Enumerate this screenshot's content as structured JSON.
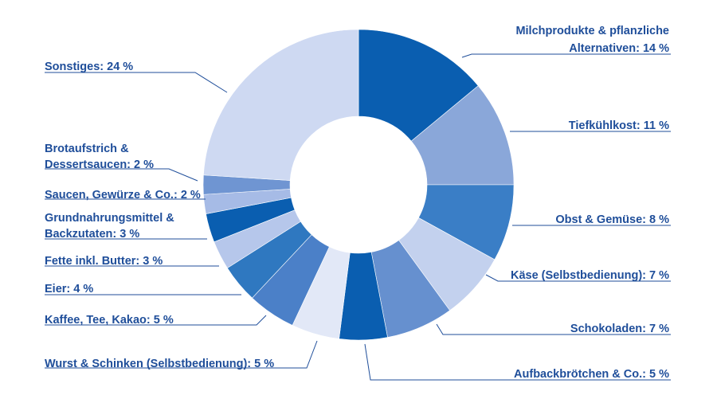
{
  "chart_data": {
    "type": "pie",
    "variant": "donut",
    "title": "",
    "slices": [
      {
        "label_lines": [
          "Milchprodukte & pflanzliche",
          "Alternativen: 14 %"
        ],
        "value": 14,
        "color": "#0a5eb0"
      },
      {
        "label_lines": [
          "Tiefkühlkost: 11 %"
        ],
        "value": 11,
        "color": "#8aa7d9"
      },
      {
        "label_lines": [
          "Obst & Gemüse: 8 %"
        ],
        "value": 8,
        "color": "#3a7ec6"
      },
      {
        "label_lines": [
          "Käse (Selbstbedienung): 7 %"
        ],
        "value": 7,
        "color": "#c3d1ee"
      },
      {
        "label_lines": [
          "Schokoladen: 7 %"
        ],
        "value": 7,
        "color": "#6690cf"
      },
      {
        "label_lines": [
          "Aufbackbrötchen & Co.: 5 %"
        ],
        "value": 5,
        "color": "#0a5eb0"
      },
      {
        "label_lines": [
          "Wurst & Schinken (Selbstbedienung): 5 %"
        ],
        "value": 5,
        "color": "#e2e8f7"
      },
      {
        "label_lines": [
          "Kaffee, Tee, Kakao: 5 %"
        ],
        "value": 5,
        "color": "#4b80c8"
      },
      {
        "label_lines": [
          "Eier: 4 %"
        ],
        "value": 4,
        "color": "#2f78c0"
      },
      {
        "label_lines": [
          "Fette inkl. Butter: 3 %"
        ],
        "value": 3,
        "color": "#b6c7eb"
      },
      {
        "label_lines": [
          "Grundnahrungsmittel &",
          "Backzutaten: 3 %"
        ],
        "value": 3,
        "color": "#0a5eb0"
      },
      {
        "label_lines": [
          "Saucen, Gewürze & Co.: 2 %"
        ],
        "value": 2,
        "color": "#a6bbe6"
      },
      {
        "label_lines": [
          "Brotaufstrich &",
          "Dessertsaucen: 2 %"
        ],
        "value": 2,
        "color": "#6f95d2"
      },
      {
        "label_lines": [
          "Sonstiges: 24 %"
        ],
        "value": 24,
        "color": "#ced9f2"
      }
    ],
    "label_color": "#1f4e9a",
    "legend": "none"
  }
}
